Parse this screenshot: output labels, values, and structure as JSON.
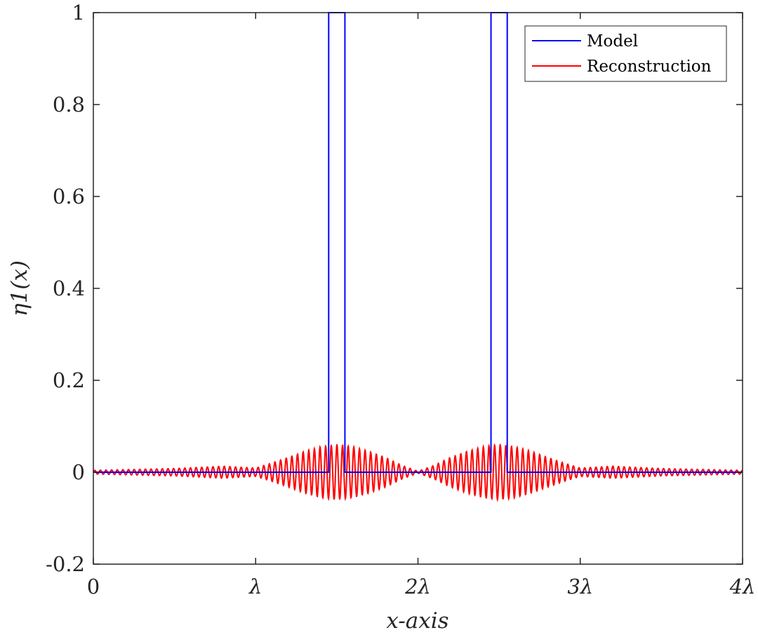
{
  "chart_data": {
    "type": "line",
    "title": "",
    "xlabel": "x-axis",
    "ylabel": "η1(x)",
    "xlim": [
      0,
      4
    ],
    "ylim": [
      -0.2,
      1
    ],
    "grid": false,
    "legend_position": "top-right",
    "x_ticks": [
      {
        "value": 0,
        "label": "0"
      },
      {
        "value": 1,
        "label": "λ"
      },
      {
        "value": 2,
        "label": "2λ"
      },
      {
        "value": 3,
        "label": "3λ"
      },
      {
        "value": 4,
        "label": "4λ"
      }
    ],
    "y_ticks": [
      {
        "value": -0.2,
        "label": "-0.2"
      },
      {
        "value": 0,
        "label": "0"
      },
      {
        "value": 0.2,
        "label": "0.2"
      },
      {
        "value": 0.4,
        "label": "0.4"
      },
      {
        "value": 0.6,
        "label": "0.6"
      },
      {
        "value": 0.8,
        "label": "0.8"
      },
      {
        "value": 1,
        "label": "1"
      }
    ],
    "series": [
      {
        "name": "Model",
        "color": "#0000ff",
        "style": "step",
        "x": [
          0,
          1.45,
          1.45,
          1.55,
          1.55,
          2.45,
          2.45,
          2.55,
          2.55,
          4
        ],
        "y": [
          0,
          0,
          1,
          1,
          0,
          0,
          1,
          1,
          0,
          0
        ]
      },
      {
        "name": "Reconstruction",
        "color": "#ff0000",
        "style": "oscillation",
        "x_step": 0.0125,
        "oscillation_period": 0.0347,
        "envelope": {
          "x": [
            0,
            0.5,
            0.8,
            1.0,
            1.1,
            1.2,
            1.3,
            1.4,
            1.5,
            1.6,
            1.7,
            1.8,
            1.9,
            2.0,
            2.1,
            2.2,
            2.3,
            2.4,
            2.5,
            2.6,
            2.7,
            2.8,
            2.9,
            3.0,
            3.2,
            3.5,
            4.0
          ],
          "amplitude": [
            0.004,
            0.008,
            0.013,
            0.009,
            0.02,
            0.032,
            0.045,
            0.055,
            0.06,
            0.055,
            0.045,
            0.032,
            0.015,
            0.002,
            0.015,
            0.032,
            0.045,
            0.055,
            0.06,
            0.055,
            0.045,
            0.032,
            0.02,
            0.009,
            0.013,
            0.008,
            0.004
          ]
        }
      }
    ]
  }
}
